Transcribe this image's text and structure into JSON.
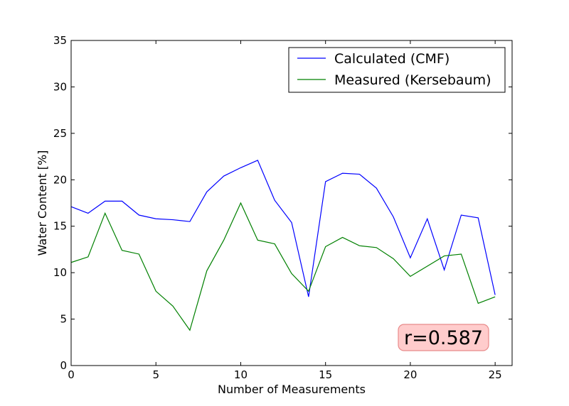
{
  "chart_data": {
    "type": "line",
    "xlabel": "Number of Measurements",
    "ylabel": "Water Content [%]",
    "xlim": [
      0,
      26
    ],
    "ylim": [
      0,
      35
    ],
    "xticks": [
      0,
      5,
      10,
      15,
      20,
      25
    ],
    "yticks": [
      0,
      5,
      10,
      15,
      20,
      25,
      30,
      35
    ],
    "grid": false,
    "legend_position": "top-right",
    "x": [
      0,
      1,
      2,
      3,
      4,
      5,
      6,
      7,
      8,
      9,
      10,
      11,
      12,
      13,
      14,
      15,
      16,
      17,
      18,
      19,
      20,
      21,
      22,
      23,
      24,
      25
    ],
    "series": [
      {
        "name": "Calculated (CMF)",
        "color": "#0000ff",
        "values": [
          17.1,
          16.4,
          17.7,
          17.7,
          16.2,
          15.8,
          15.7,
          15.5,
          18.7,
          20.4,
          21.3,
          22.1,
          17.8,
          15.4,
          7.4,
          19.8,
          20.7,
          20.6,
          19.1,
          16.0,
          11.6,
          15.8,
          10.3,
          16.2,
          15.9,
          7.6
        ]
      },
      {
        "name": "Measured (Kersebaum)",
        "color": "#008000",
        "values": [
          11.1,
          11.7,
          16.4,
          12.4,
          12.0,
          8.0,
          6.4,
          3.8,
          10.2,
          13.5,
          17.5,
          13.5,
          13.1,
          9.9,
          8.0,
          12.8,
          13.8,
          12.9,
          12.7,
          11.5,
          9.6,
          10.7,
          11.8,
          12.0,
          6.7,
          7.4
        ]
      }
    ],
    "annotation": {
      "text": "r=0.587",
      "background": "#ffcccc",
      "border": "#e88a8a"
    }
  }
}
